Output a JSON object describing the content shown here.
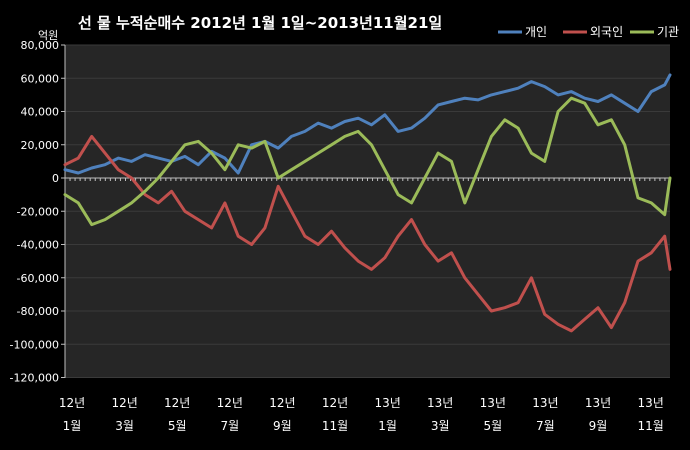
{
  "chart_data": {
    "type": "line",
    "title": "선 물 누적순매수 2012년 1월 1일~2013년11월21일",
    "ylabel": "억원",
    "xlabel": "",
    "ylim": [
      -120000,
      80000
    ],
    "yticks": [
      80000,
      60000,
      40000,
      20000,
      0,
      -20000,
      -40000,
      -60000,
      -80000,
      -100000,
      -120000
    ],
    "ytick_labels": [
      "80,000",
      "60,000",
      "40,000",
      "20,000",
      "0",
      "-20,000",
      "-40,000",
      "-60,000",
      "-80,000",
      "-100,000",
      "-120,000"
    ],
    "x_tick_labels": [
      {
        "year": "12년",
        "month": "1월"
      },
      {
        "year": "12년",
        "month": "3월"
      },
      {
        "year": "12년",
        "month": "5월"
      },
      {
        "year": "12년",
        "month": "7월"
      },
      {
        "year": "12년",
        "month": "9월"
      },
      {
        "year": "12년",
        "month": "11월"
      },
      {
        "year": "13년",
        "month": "1월"
      },
      {
        "year": "13년",
        "month": "3월"
      },
      {
        "year": "13년",
        "month": "5월"
      },
      {
        "year": "13년",
        "month": "7월"
      },
      {
        "year": "13년",
        "month": "9월"
      },
      {
        "year": "13년",
        "month": "11월"
      }
    ],
    "x_range_months": [
      0,
      22.7
    ],
    "grid": true,
    "legend_position": "top-right",
    "background_color": "#262626",
    "series": [
      {
        "name": "개인",
        "color": "#4f81bd",
        "x": [
          0,
          0.5,
          1,
          1.5,
          2,
          2.5,
          3,
          3.5,
          4,
          4.5,
          5,
          5.5,
          6,
          6.5,
          7,
          7.5,
          8,
          8.5,
          9,
          9.5,
          10,
          10.5,
          11,
          11.5,
          12,
          12.5,
          13,
          13.5,
          14,
          14.5,
          15,
          15.5,
          16,
          16.5,
          17,
          17.5,
          18,
          18.5,
          19,
          19.5,
          20,
          20.5,
          21,
          21.5,
          22,
          22.5,
          22.7
        ],
        "values": [
          5000,
          3000,
          6000,
          8000,
          12000,
          10000,
          14000,
          12000,
          10000,
          13000,
          8000,
          16000,
          12000,
          3000,
          20000,
          22000,
          18000,
          25000,
          28000,
          33000,
          30000,
          34000,
          36000,
          32000,
          38000,
          28000,
          30000,
          36000,
          44000,
          46000,
          48000,
          47000,
          50000,
          52000,
          54000,
          58000,
          55000,
          50000,
          52000,
          48000,
          46000,
          50000,
          45000,
          40000,
          52000,
          56000,
          62000
        ]
      },
      {
        "name": "외국인",
        "color": "#c0504d",
        "x": [
          0,
          0.5,
          1,
          1.5,
          2,
          2.5,
          3,
          3.5,
          4,
          4.5,
          5,
          5.5,
          6,
          6.5,
          7,
          7.5,
          8,
          8.5,
          9,
          9.5,
          10,
          10.5,
          11,
          11.5,
          12,
          12.5,
          13,
          13.5,
          14,
          14.5,
          15,
          15.5,
          16,
          16.5,
          17,
          17.5,
          18,
          18.5,
          19,
          19.5,
          20,
          20.5,
          21,
          21.5,
          22,
          22.5,
          22.7
        ],
        "values": [
          8000,
          12000,
          25000,
          15000,
          5000,
          0,
          -10000,
          -15000,
          -8000,
          -20000,
          -25000,
          -30000,
          -15000,
          -35000,
          -40000,
          -30000,
          -5000,
          -20000,
          -35000,
          -40000,
          -32000,
          -42000,
          -50000,
          -55000,
          -48000,
          -35000,
          -25000,
          -40000,
          -50000,
          -45000,
          -60000,
          -70000,
          -80000,
          -78000,
          -75000,
          -60000,
          -82000,
          -88000,
          -92000,
          -85000,
          -78000,
          -90000,
          -75000,
          -50000,
          -45000,
          -35000,
          -55000
        ]
      },
      {
        "name": "기관",
        "color": "#9bbb59",
        "x": [
          0,
          0.5,
          1,
          1.5,
          2,
          2.5,
          3,
          3.5,
          4,
          4.5,
          5,
          5.5,
          6,
          6.5,
          7,
          7.5,
          8,
          8.5,
          9,
          9.5,
          10,
          10.5,
          11,
          11.5,
          12,
          12.5,
          13,
          13.5,
          14,
          14.5,
          15,
          15.5,
          16,
          16.5,
          17,
          17.5,
          18,
          18.5,
          19,
          19.5,
          20,
          20.5,
          21,
          21.5,
          22,
          22.5,
          22.7
        ],
        "values": [
          -10000,
          -15000,
          -28000,
          -25000,
          -20000,
          -15000,
          -8000,
          0,
          10000,
          20000,
          22000,
          15000,
          5000,
          20000,
          18000,
          22000,
          0,
          5000,
          10000,
          15000,
          20000,
          25000,
          28000,
          20000,
          5000,
          -10000,
          -15000,
          0,
          15000,
          10000,
          -15000,
          5000,
          25000,
          35000,
          30000,
          15000,
          10000,
          40000,
          48000,
          45000,
          32000,
          35000,
          20000,
          -12000,
          -15000,
          -22000,
          0
        ]
      }
    ]
  }
}
